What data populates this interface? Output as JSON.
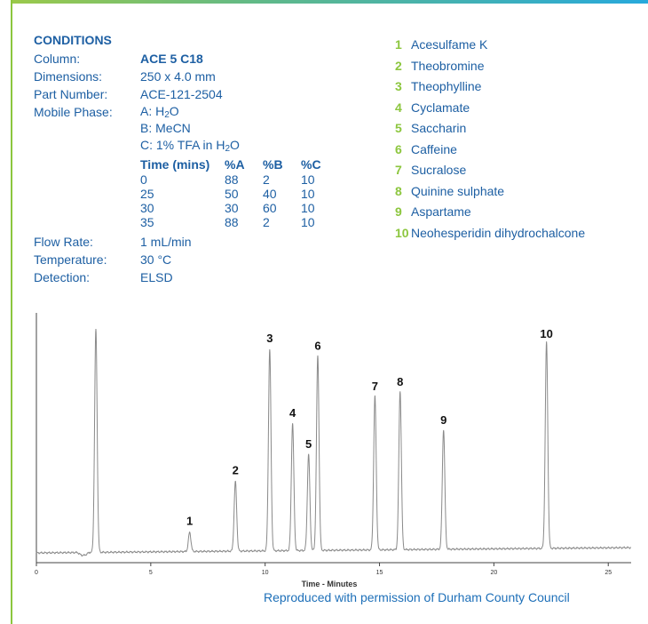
{
  "conditions": {
    "heading": "CONDITIONS",
    "column_label": "Column:",
    "column_value": "ACE 5 C18",
    "dimensions_label": "Dimensions:",
    "dimensions_value": "250 x 4.0 mm",
    "part_label": "Part Number:",
    "part_value": "ACE-121-2504",
    "mobile_label": "Mobile Phase:",
    "mobile_a_prefix": "A: H",
    "mobile_a_sub": "2",
    "mobile_a_suffix": "O",
    "mobile_b": "B: MeCN",
    "mobile_c_prefix": "C: 1% TFA in H",
    "mobile_c_sub": "2",
    "mobile_c_suffix": "O",
    "gradient_headers": [
      "Time (mins)",
      "%A",
      "%B",
      "%C"
    ],
    "gradient_rows": [
      [
        "0",
        "88",
        "2",
        "10"
      ],
      [
        "25",
        "50",
        "40",
        "10"
      ],
      [
        "30",
        "30",
        "60",
        "10"
      ],
      [
        "35",
        "88",
        "2",
        "10"
      ]
    ],
    "flow_label": "Flow Rate:",
    "flow_value": "1 mL/min",
    "temp_label": "Temperature:",
    "temp_value": "30 °C",
    "detection_label": "Detection:",
    "detection_value": "ELSD"
  },
  "legend": [
    {
      "num": "1",
      "name": "Acesulfame K"
    },
    {
      "num": "2",
      "name": "Theobromine"
    },
    {
      "num": "3",
      "name": "Theophylline"
    },
    {
      "num": "4",
      "name": "Cyclamate"
    },
    {
      "num": "5",
      "name": "Saccharin"
    },
    {
      "num": "6",
      "name": "Caffeine"
    },
    {
      "num": "7",
      "name": "Sucralose"
    },
    {
      "num": "8",
      "name": "Quinine sulphate"
    },
    {
      "num": "9",
      "name": "Aspartame"
    },
    {
      "num": "10",
      "name": "Neohesperidin dihydrochalcone"
    }
  ],
  "credit": "Reproduced with permission of Durham County Council",
  "colors": {
    "accent_green": "#8cc63e",
    "text_blue": "#1d5fa3",
    "trace": "#8a8a8a"
  },
  "chart_data": {
    "type": "line",
    "title": "",
    "xlabel": "Time - Minutes",
    "ylabel": "",
    "xlim": [
      0,
      26
    ],
    "ylim": [
      0,
      100
    ],
    "x_ticks": [
      "0",
      "5",
      "10",
      "15",
      "20",
      "25"
    ],
    "grid": false,
    "peaks": [
      {
        "label": "",
        "time": 2.6,
        "height": 93
      },
      {
        "label": "1",
        "time": 6.7,
        "height": 8
      },
      {
        "label": "2",
        "time": 8.7,
        "height": 29
      },
      {
        "label": "3",
        "time": 10.2,
        "height": 84
      },
      {
        "label": "4",
        "time": 11.2,
        "height": 53
      },
      {
        "label": "5",
        "time": 11.9,
        "height": 40
      },
      {
        "label": "6",
        "time": 12.3,
        "height": 81
      },
      {
        "label": "7",
        "time": 14.8,
        "height": 64
      },
      {
        "label": "8",
        "time": 15.9,
        "height": 66
      },
      {
        "label": "9",
        "time": 17.8,
        "height": 50
      },
      {
        "label": "10",
        "time": 22.3,
        "height": 86
      }
    ]
  }
}
